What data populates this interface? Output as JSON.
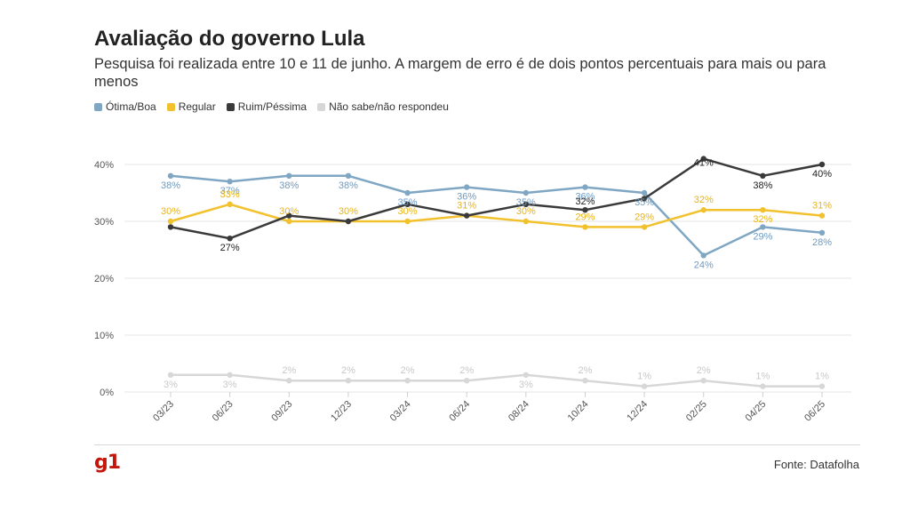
{
  "title": "Avaliação do governo Lula",
  "subtitle": "Pesquisa foi realizada entre 10 e 11 de junho. A margem de erro é de dois pontos percentuais para mais ou para menos",
  "source": "Fonte: Datafolha",
  "logo": "g1",
  "chart_data": {
    "type": "line",
    "categories": [
      "03/23",
      "06/23",
      "09/23",
      "12/23",
      "03/24",
      "06/24",
      "08/24",
      "10/24",
      "12/24",
      "02/25",
      "04/25",
      "06/25"
    ],
    "ylim": [
      0,
      40
    ],
    "yticks": [
      "0%",
      "10%",
      "20%",
      "30%",
      "40%"
    ],
    "grid": true,
    "legend_position": "top-left",
    "series": [
      {
        "name": "Ótima/Boa",
        "color": "#7fa7c4",
        "values": [
          38,
          37,
          38,
          38,
          35,
          36,
          35,
          36,
          35,
          24,
          29,
          28
        ]
      },
      {
        "name": "Regular",
        "color": "#f2c12e",
        "values": [
          30,
          33,
          30,
          30,
          30,
          31,
          30,
          29,
          29,
          32,
          32,
          31
        ]
      },
      {
        "name": "Ruim/Péssima",
        "color": "#3a3a3a",
        "values": [
          29,
          27,
          31,
          30,
          33,
          31,
          33,
          32,
          34,
          41,
          38,
          40
        ]
      },
      {
        "name": "Não sabe/não respondeu",
        "color": "#d7d7d7",
        "values": [
          3,
          3,
          2,
          2,
          2,
          2,
          3,
          2,
          1,
          2,
          1,
          1
        ]
      }
    ],
    "data_labels": [
      {
        "series": 0,
        "labels": [
          [
            0,
            "38%"
          ],
          [
            1,
            "37%"
          ],
          [
            2,
            "38%"
          ],
          [
            3,
            "38%"
          ],
          [
            4,
            "35%"
          ],
          [
            5,
            "36%"
          ],
          [
            6,
            "35%"
          ],
          [
            7,
            "36%"
          ],
          [
            8,
            "35%"
          ],
          [
            9,
            "24%"
          ],
          [
            10,
            "29%"
          ],
          [
            11,
            "28%"
          ]
        ]
      },
      {
        "series": 1,
        "labels": [
          [
            0,
            "30%"
          ],
          [
            1,
            "33%"
          ],
          [
            2,
            "30%"
          ],
          [
            3,
            "30%"
          ],
          [
            4,
            "30%"
          ],
          [
            5,
            "31%"
          ],
          [
            6,
            "30%"
          ],
          [
            7,
            "29%"
          ],
          [
            8,
            "29%"
          ],
          [
            9,
            "32%"
          ],
          [
            10,
            "32%"
          ],
          [
            11,
            "31%"
          ]
        ]
      },
      {
        "series": 2,
        "labels": [
          [
            1,
            "27%"
          ],
          [
            7,
            "32%"
          ],
          [
            9,
            "41%"
          ],
          [
            10,
            "38%"
          ],
          [
            11,
            "40%"
          ]
        ]
      },
      {
        "series": 3,
        "labels": [
          [
            0,
            "3%"
          ],
          [
            1,
            "3%"
          ],
          [
            2,
            "2%"
          ],
          [
            3,
            "2%"
          ],
          [
            4,
            "2%"
          ],
          [
            5,
            "2%"
          ],
          [
            6,
            "3%"
          ],
          [
            7,
            "2%"
          ],
          [
            8,
            "1%"
          ],
          [
            9,
            "2%"
          ],
          [
            10,
            "1%"
          ],
          [
            11,
            "1%"
          ]
        ]
      }
    ]
  }
}
